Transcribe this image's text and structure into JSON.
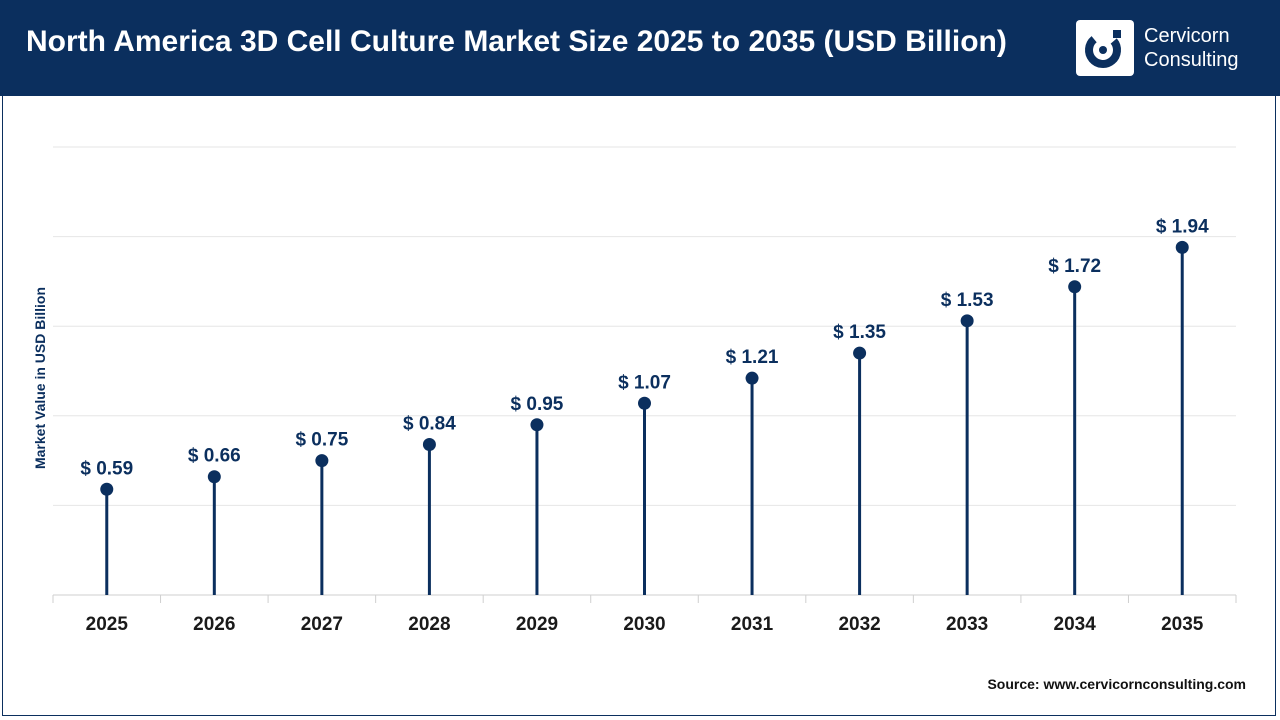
{
  "header": {
    "title": "North America 3D Cell Culture Market Size 2025 to 2035 (USD Billion)",
    "logo_line1": "Cervicorn",
    "logo_line2": "Consulting"
  },
  "source": "Source: www.cervicornconsulting.com",
  "colors": {
    "header_bg": "#0b2f5e",
    "marker": "#0b2f5e",
    "grid": "#e6e6e6"
  },
  "chart_data": {
    "type": "lollipop",
    "title": "North America 3D Cell Culture Market Size 2025 to 2035 (USD Billion)",
    "xlabel": "",
    "ylabel": "Market Value in USD Billion",
    "categories": [
      "2025",
      "2026",
      "2027",
      "2028",
      "2029",
      "2030",
      "2031",
      "2032",
      "2033",
      "2034",
      "2035"
    ],
    "values": [
      0.59,
      0.66,
      0.75,
      0.84,
      0.95,
      1.07,
      1.21,
      1.35,
      1.53,
      1.72,
      1.94
    ],
    "value_labels": [
      "$ 0.59",
      "$ 0.66",
      "$ 0.75",
      "$ 0.84",
      "$ 0.95",
      "$ 1.07",
      "$ 1.21",
      "$ 1.35",
      "$ 1.53",
      "$ 1.72",
      "$ 1.94"
    ],
    "ylim": [
      0,
      2.5
    ],
    "grid": true,
    "legend": "none"
  }
}
